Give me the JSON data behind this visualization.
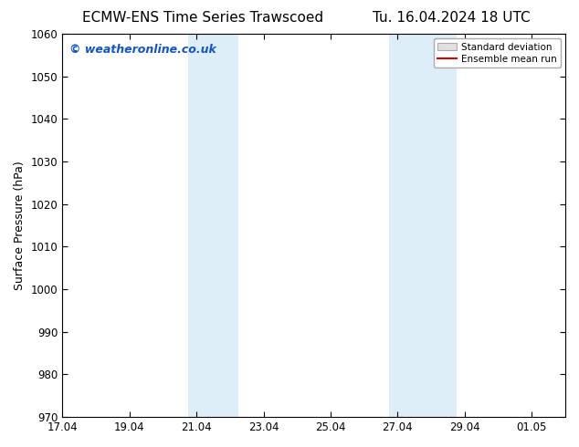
{
  "title_left": "ECMW-ENS Time Series Trawscoed",
  "title_right": "Tu. 16.04.2024 18 UTC",
  "ylabel": "Surface Pressure (hPa)",
  "ylim": [
    970,
    1060
  ],
  "yticks": [
    970,
    980,
    990,
    1000,
    1010,
    1020,
    1030,
    1040,
    1050,
    1060
  ],
  "xlim": [
    0,
    15
  ],
  "xtick_positions": [
    0,
    2,
    4,
    6,
    8,
    10,
    12,
    14
  ],
  "xtick_labels": [
    "17.04",
    "19.04",
    "21.04",
    "23.04",
    "25.04",
    "27.04",
    "29.04",
    "01.05"
  ],
  "shaded_bands": [
    {
      "x_start": 3.75,
      "x_end": 5.25,
      "color": "#ddeef8"
    },
    {
      "x_start": 9.75,
      "x_end": 11.75,
      "color": "#ddeef8"
    }
  ],
  "watermark_text": "© weatheronline.co.uk",
  "watermark_color": "#1155cc",
  "watermark_fontsize": 10,
  "legend_std_label": "Standard deviation",
  "legend_ens_label": "Ensemble mean run",
  "legend_std_facecolor": "#e0e0e0",
  "legend_std_edgecolor": "#aaaaaa",
  "legend_ens_color": "#dd0000",
  "bg_color": "#ffffff",
  "spine_color": "#000000",
  "tick_color": "#000000",
  "title_fontsize": 11,
  "ylabel_fontsize": 9,
  "tick_fontsize": 8.5,
  "watermark_fontsize_val": 9
}
